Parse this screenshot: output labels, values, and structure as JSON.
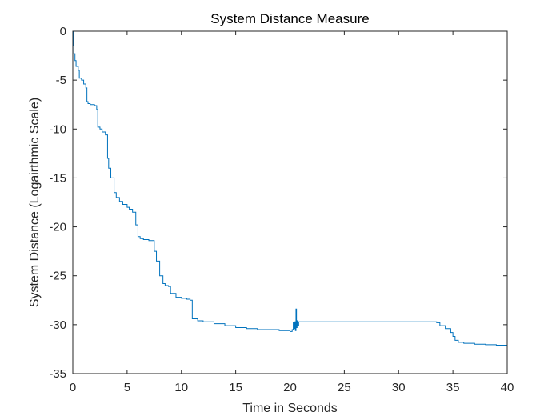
{
  "chart_data": {
    "type": "line",
    "title": "System Distance Measure",
    "xlabel": "Time in Seconds",
    "ylabel": "System Distance (Logairthmic Scale)",
    "xlim": [
      0,
      40
    ],
    "ylim": [
      -35,
      0
    ],
    "xticks": [
      0,
      5,
      10,
      15,
      20,
      25,
      30,
      35,
      40
    ],
    "yticks": [
      0,
      -5,
      -10,
      -15,
      -20,
      -25,
      -30,
      -35
    ],
    "xtick_labels": [
      "0",
      "5",
      "10",
      "15",
      "20",
      "25",
      "30",
      "35",
      "40"
    ],
    "ytick_labels": [
      "0",
      "-5",
      "-10",
      "-15",
      "-20",
      "-25",
      "-30",
      "-35"
    ],
    "grid": false,
    "line_color": "#0072BD",
    "series": [
      {
        "x": [
          0,
          0.05,
          0.1,
          0.2,
          0.3,
          0.5,
          0.6,
          0.8,
          1.0,
          1.2,
          1.3,
          1.4,
          1.6,
          2.0,
          2.2,
          2.3,
          2.5,
          2.7,
          3.0,
          3.2,
          3.3,
          3.5,
          3.8,
          4.0,
          4.3,
          4.6,
          5.0,
          5.2,
          5.5,
          5.8,
          6.0,
          6.2,
          6.5,
          7.0,
          7.5,
          7.7,
          8.0,
          8.3,
          8.5,
          8.8,
          9.0,
          9.5,
          10.0,
          10.5,
          10.8,
          11.0,
          11.5,
          12.0,
          13.0,
          14.0,
          15.0,
          16.0,
          17.0,
          18.0,
          19.0,
          20.0,
          20.2,
          20.3,
          20.4,
          20.45,
          20.5,
          20.55,
          20.6,
          20.65,
          20.7,
          20.8,
          21.0,
          22.0,
          25.0,
          28.0,
          31.0,
          33.5,
          33.8,
          34.3,
          34.8,
          35.0,
          35.2,
          35.5,
          36.0,
          37.0,
          38.0,
          39.0,
          40.0
        ],
        "y": [
          0,
          -1.5,
          -2.3,
          -3.0,
          -3.6,
          -4.0,
          -4.8,
          -5.0,
          -5.4,
          -5.8,
          -7.2,
          -7.4,
          -7.5,
          -7.6,
          -8.0,
          -9.8,
          -10.0,
          -10.3,
          -10.6,
          -13.0,
          -14.0,
          -15.0,
          -16.5,
          -17.0,
          -17.4,
          -17.7,
          -18.0,
          -18.2,
          -18.5,
          -19.8,
          -21.0,
          -21.2,
          -21.3,
          -21.4,
          -22.5,
          -23.5,
          -25.0,
          -25.8,
          -26.0,
          -26.1,
          -26.8,
          -27.2,
          -27.3,
          -27.4,
          -27.5,
          -29.4,
          -29.6,
          -29.7,
          -29.9,
          -30.1,
          -30.3,
          -30.4,
          -30.5,
          -30.5,
          -30.6,
          -30.7,
          -30.5,
          -29.8,
          -30.4,
          -29.7,
          -30.6,
          -28.4,
          -30.3,
          -29.6,
          -30.1,
          -29.7,
          -29.7,
          -29.7,
          -29.7,
          -29.7,
          -29.7,
          -29.8,
          -30.1,
          -30.4,
          -30.8,
          -31.2,
          -31.6,
          -31.8,
          -31.9,
          -32.0,
          -32.05,
          -32.1,
          -32.1
        ]
      }
    ]
  }
}
